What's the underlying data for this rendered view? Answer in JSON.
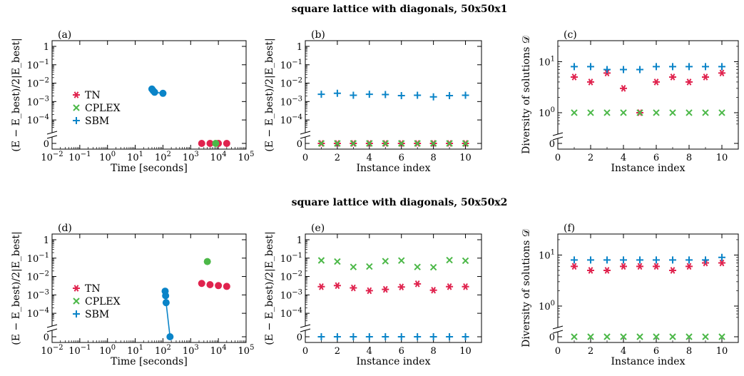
{
  "figure": {
    "row_titles": [
      "square lattice with diagonals, 50x50x1",
      "square lattice with diagonals, 50x50x2"
    ]
  },
  "colors": {
    "TN": "#e0234e",
    "CPLEX": "#4cb848",
    "SBM": "#0a84c8"
  },
  "legend": [
    "TN",
    "CPLEX",
    "SBM"
  ],
  "chart_data": [
    {
      "panel": "(a)",
      "type": "scatter",
      "xlabel": "Time [seconds]",
      "ylabel": "(E − E_best)/2|E_best|",
      "xscale": "log",
      "xlim": [
        0.01,
        100000
      ],
      "xticks": [
        "10^-2",
        "10^-1",
        "10^0",
        "10^1",
        "10^2",
        "10^3",
        "10^4",
        "10^5"
      ],
      "yscale": "broken-log",
      "ylim": [
        0,
        1
      ],
      "yticks": [
        "0",
        "10^-4",
        "10^-3",
        "10^-2",
        "10^-1",
        "1"
      ],
      "legend": "left",
      "series": [
        {
          "name": "TN",
          "marker": "circle",
          "x": [
            2500,
            5000,
            10000,
            20000
          ],
          "y": [
            0,
            0,
            0,
            0
          ]
        },
        {
          "name": "CPLEX",
          "marker": "circle",
          "x": [
            8000
          ],
          "y": [
            0
          ]
        },
        {
          "name": "SBM",
          "marker": "circle",
          "connected": true,
          "x": [
            40,
            45,
            50,
            100
          ],
          "y": [
            0.0048,
            0.0038,
            0.0032,
            0.0028
          ]
        }
      ]
    },
    {
      "panel": "(b)",
      "type": "scatter",
      "xlabel": "Instance index",
      "ylabel": "(E − E_best)/2|E_best|",
      "xlim": [
        0,
        11
      ],
      "xticks": [
        "0",
        "2",
        "4",
        "6",
        "8",
        "10"
      ],
      "yscale": "broken-log",
      "ylim": [
        0,
        1
      ],
      "yticks": [
        "0",
        "10^-4",
        "10^-3",
        "10^-2",
        "10^-1",
        "1"
      ],
      "x": [
        1,
        2,
        3,
        4,
        5,
        6,
        7,
        8,
        9,
        10
      ],
      "series": [
        {
          "name": "TN",
          "marker": "asterisk",
          "y": [
            0,
            0,
            0,
            0,
            0,
            0,
            0,
            0,
            0,
            0
          ]
        },
        {
          "name": "CPLEX",
          "marker": "x",
          "y": [
            0,
            0,
            0,
            0,
            0,
            0,
            0,
            0,
            0,
            0
          ]
        },
        {
          "name": "SBM",
          "marker": "plus",
          "y": [
            0.0025,
            0.0028,
            0.0022,
            0.0025,
            0.0024,
            0.0021,
            0.0022,
            0.0018,
            0.0021,
            0.0022
          ]
        }
      ]
    },
    {
      "panel": "(c)",
      "type": "scatter",
      "xlabel": "Instance index",
      "ylabel": "Diversity of solutions 𝒟",
      "xlim": [
        0,
        11
      ],
      "xticks": [
        "0",
        "2",
        "4",
        "6",
        "8",
        "10"
      ],
      "yscale": "broken-log",
      "ylim": [
        0,
        20
      ],
      "yticks": [
        "0",
        "10^0",
        "10^1"
      ],
      "x": [
        1,
        2,
        3,
        4,
        5,
        6,
        7,
        8,
        9,
        10
      ],
      "series": [
        {
          "name": "TN",
          "marker": "asterisk",
          "y": [
            5,
            4,
            6,
            3,
            1,
            4,
            5,
            4,
            5,
            6
          ]
        },
        {
          "name": "CPLEX",
          "marker": "x",
          "y": [
            1,
            1,
            1,
            1,
            1,
            1,
            1,
            1,
            1,
            1
          ]
        },
        {
          "name": "SBM",
          "marker": "plus",
          "y": [
            8,
            8,
            7,
            7,
            7,
            8,
            8,
            8,
            8,
            8
          ]
        }
      ]
    },
    {
      "panel": "(d)",
      "type": "scatter",
      "xlabel": "Time [seconds]",
      "ylabel": "(E − E_best)/2|E_best|",
      "xscale": "log",
      "xlim": [
        0.01,
        100000
      ],
      "xticks": [
        "10^-2",
        "10^-1",
        "10^0",
        "10^1",
        "10^2",
        "10^3",
        "10^4",
        "10^5"
      ],
      "yscale": "broken-log",
      "ylim": [
        0,
        1
      ],
      "yticks": [
        "0",
        "10^-4",
        "10^-3",
        "10^-2",
        "10^-1",
        "1"
      ],
      "legend": "left",
      "series": [
        {
          "name": "TN",
          "marker": "circle",
          "x": [
            2500,
            5000,
            10000,
            20000
          ],
          "y": [
            0.0042,
            0.0036,
            0.0032,
            0.0029
          ]
        },
        {
          "name": "CPLEX",
          "marker": "circle",
          "x": [
            4000
          ],
          "y": [
            0.065
          ]
        },
        {
          "name": "SBM",
          "marker": "circle",
          "connected": true,
          "x": [
            120,
            125,
            130,
            180
          ],
          "y": [
            0.0016,
            0.0009,
            0.00038,
            0
          ]
        }
      ]
    },
    {
      "panel": "(e)",
      "type": "scatter",
      "xlabel": "Instance index",
      "ylabel": "(E − E_best)/2|E_best|",
      "xlim": [
        0,
        11
      ],
      "xticks": [
        "0",
        "2",
        "4",
        "6",
        "8",
        "10"
      ],
      "yscale": "broken-log",
      "ylim": [
        0,
        1
      ],
      "yticks": [
        "0",
        "10^-4",
        "10^-3",
        "10^-2",
        "10^-1",
        "1"
      ],
      "x": [
        1,
        2,
        3,
        4,
        5,
        6,
        7,
        8,
        9,
        10
      ],
      "series": [
        {
          "name": "TN",
          "marker": "asterisk",
          "y": [
            0.0028,
            0.0032,
            0.0024,
            0.0017,
            0.002,
            0.0027,
            0.004,
            0.0018,
            0.0028,
            0.0028
          ]
        },
        {
          "name": "CPLEX",
          "marker": "x",
          "y": [
            0.075,
            0.065,
            0.033,
            0.035,
            0.068,
            0.074,
            0.033,
            0.032,
            0.078,
            0.072
          ]
        },
        {
          "name": "SBM",
          "marker": "plus",
          "y": [
            0,
            0,
            0,
            0,
            0,
            0,
            0,
            0,
            0,
            0
          ]
        }
      ]
    },
    {
      "panel": "(f)",
      "type": "scatter",
      "xlabel": "Instance index",
      "ylabel": "Diversity of solutions 𝒟",
      "xlim": [
        0,
        11
      ],
      "xticks": [
        "0",
        "2",
        "4",
        "6",
        "8",
        "10"
      ],
      "yscale": "broken-log",
      "ylim": [
        0,
        20
      ],
      "yticks": [
        "0",
        "10^0",
        "10^1"
      ],
      "x": [
        1,
        2,
        3,
        4,
        5,
        6,
        7,
        8,
        9,
        10
      ],
      "series": [
        {
          "name": "TN",
          "marker": "asterisk",
          "y": [
            6,
            5,
            5,
            6,
            6,
            6,
            5,
            6,
            7,
            7
          ]
        },
        {
          "name": "CPLEX",
          "marker": "x",
          "y": [
            0,
            0,
            0,
            0,
            0,
            0,
            0,
            0,
            0,
            0
          ]
        },
        {
          "name": "SBM",
          "marker": "plus",
          "y": [
            8,
            8,
            8,
            8,
            8,
            8,
            8,
            8,
            8,
            9
          ]
        }
      ]
    }
  ]
}
